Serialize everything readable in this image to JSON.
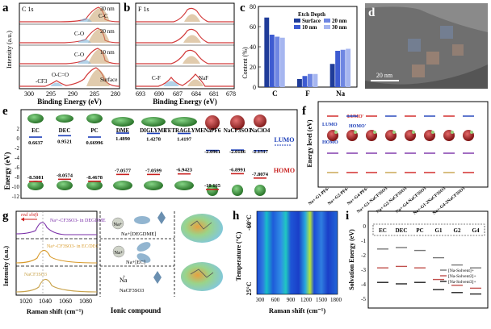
{
  "figure": {
    "panels": {
      "a": {
        "label": "a",
        "title": "C 1s",
        "ylabel": "Intensity (a.u.)",
        "xlabel": "Binding Energy (eV)",
        "xticks": [
          "300",
          "295",
          "290",
          "285",
          "280"
        ],
        "depths": [
          "30 nm",
          "20 nm",
          "10 nm",
          "Surface"
        ],
        "peaks": {
          "cc": "C-C",
          "co": "C-O",
          "oco": "O-C=O",
          "cf": "-CF3"
        }
      },
      "b": {
        "label": "b",
        "title": "F 1s",
        "xlabel": "Binding Energy (eV)",
        "xticks": [
          "693",
          "690",
          "687",
          "684",
          "681",
          "678"
        ],
        "peaks": {
          "cf": "C-F",
          "naf": "NaF"
        }
      },
      "c": {
        "label": "c",
        "ylabel": "Content (%)",
        "legend_title": "Etch Depth",
        "legend_colors": [
          "#1f3c99",
          "#3d5bd1",
          "#6e86e2",
          "#a6b6f0"
        ]
      },
      "d": {
        "label": "d",
        "scale": "20 nm"
      },
      "e": {
        "label": "e",
        "ylabel": "Energy (eV)",
        "yticks": [
          "2",
          "0",
          "-2",
          "-4",
          "-6",
          "-8",
          "-10",
          "-12"
        ],
        "lumo_label": "LUMO",
        "homo_label": "HOMO",
        "molecules": [
          {
            "name": "EC",
            "lumo": "0.6637",
            "homo": "-8.5081"
          },
          {
            "name": "DEC",
            "lumo": "0.9521",
            "homo": "-8.0574"
          },
          {
            "name": "PC",
            "lumo": "0.66996",
            "homo": "-8.4678"
          },
          {
            "name": "DME",
            "lumo": "1.4890",
            "homo": "-7.0577"
          },
          {
            "name": "DIGLYME",
            "lumo": "1.4278",
            "homo": "-7.0599"
          },
          {
            "name": "TETRAGLYME",
            "lumo": "1.4197",
            "homo": "-6.9423"
          },
          {
            "name": "NaPF6",
            "lumo": "-2.0961",
            "homo": "-10.165"
          },
          {
            "name": "NaCF3SO3",
            "lumo": "-2.0186",
            "homo": "-6.8991"
          },
          {
            "name": "NaClO4",
            "lumo": "-2.1517",
            "homo": "-7.8074"
          }
        ]
      },
      "f": {
        "label": "f",
        "ylabel": "Energy level (eV)",
        "lumo_label": "LUMO",
        "homo_label": "HOMO",
        "lumo_prime": "LUMO'",
        "homo_prime": "HOMO'",
        "categories": [
          "Na+-G1-PF6-",
          "Na+-G2-PF6-",
          "Na+-G4-PF6-",
          "Na+-G1-NaCF3SO3",
          "Na+-G2-NaCF3SO3",
          "Na+-G4-NaCF3SO3",
          "Na+-G1-2NaCF3SO3",
          "Na+-G4-2NaCF3SO3"
        ]
      },
      "g": {
        "label": "g",
        "ylabel": "Intensity (a.u.)",
        "xlabel": "Raman shift (cm⁻¹)",
        "xticks": [
          "1020",
          "1040",
          "1060",
          "1080"
        ],
        "red_shift": "red shift",
        "series_labels": [
          "Na+-CF3SO3- in DEGDME",
          "Na+-CF3SO3- in EC/DEC",
          "NaCF3SO3"
        ],
        "ionic_label": "Ionic compound",
        "species": [
          "Na+[DEGDME]",
          "Na+[EC]",
          "Na",
          "NaCF3SO3"
        ],
        "na_plus": "Na+",
        "na_label": "Na"
      },
      "h": {
        "label": "h",
        "ylabel": "Temperature (°C)",
        "y_top": "-60°C",
        "y_bottom": "25°C",
        "xlabel": "Raman shift (cm⁻¹)",
        "xticks": [
          "300",
          "600",
          "900",
          "1200",
          "1500",
          "1800"
        ]
      },
      "i": {
        "label": "i",
        "ylabel": "Solvation Energy (eV)",
        "yticks": [
          "0",
          "-1",
          "-2",
          "-3",
          "-4",
          "-5"
        ],
        "categories": [
          "EC",
          "DEC",
          "PC",
          "G1",
          "G2",
          "G4"
        ],
        "legend": [
          "[Na-Solvent]+",
          "[Na-Solvent2]+",
          "[Na-Solvent3]+"
        ]
      }
    },
    "chart_data": [
      {
        "panel": "c",
        "type": "bar",
        "title": "",
        "ylabel": "Content (%)",
        "ylim": [
          0,
          80
        ],
        "yticks": [
          0,
          20,
          40,
          60,
          80
        ],
        "categories": [
          "C",
          "F",
          "Na"
        ],
        "series": [
          {
            "name": "Surface",
            "values": [
              69,
              8,
              23
            ]
          },
          {
            "name": "10 nm",
            "values": [
              52,
              11,
              36
            ]
          },
          {
            "name": "20 nm",
            "values": [
              50,
              13,
              37
            ]
          },
          {
            "name": "30 nm",
            "values": [
              49,
              13,
              38
            ]
          }
        ]
      },
      {
        "panel": "i",
        "type": "scatter",
        "ylabel": "Solvation Energy (eV)",
        "ylim": [
          -5,
          0
        ],
        "categories": [
          "EC",
          "DEC",
          "PC",
          "G1",
          "G2",
          "G4"
        ],
        "series": [
          {
            "name": "[Na-Solvent]+",
            "values": [
              -1.6,
              -1.5,
              -1.7,
              -2.2,
              -2.7,
              -2.9
            ]
          },
          {
            "name": "[Na-Solvent2]+",
            "values": [
              -2.9,
              -2.8,
              -2.9,
              -3.7,
              -4.1,
              -4.3
            ]
          },
          {
            "name": "[Na-Solvent3]+",
            "values": [
              -3.9,
              -4.0,
              -3.9,
              -4.4,
              -4.6,
              -4.7
            ]
          }
        ]
      }
    ]
  }
}
